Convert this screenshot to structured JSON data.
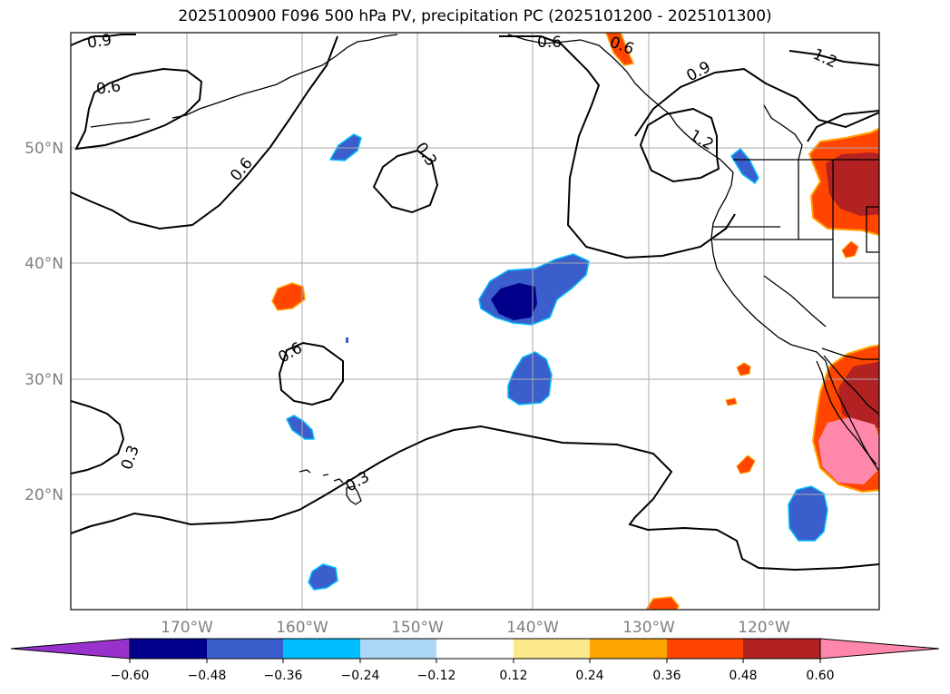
{
  "title": "2025100900 F096 500 hPa PV, precipitation PC (2025101200 - 2025101300)",
  "chart_data": {
    "type": "contour-map",
    "projection": "lat-lon",
    "lon_range": [
      -180,
      -110
    ],
    "lat_range": [
      10,
      60
    ],
    "grid": true,
    "lat_ticks": [
      {
        "value": 50,
        "label": "50°N"
      },
      {
        "value": 40,
        "label": "40°N"
      },
      {
        "value": 30,
        "label": "30°N"
      },
      {
        "value": 20,
        "label": "20°N"
      }
    ],
    "lon_ticks": [
      {
        "value": -170,
        "label": "170°W"
      },
      {
        "value": -160,
        "label": "160°W"
      },
      {
        "value": -150,
        "label": "150°W"
      },
      {
        "value": -140,
        "label": "140°W"
      },
      {
        "value": -130,
        "label": "130°W"
      },
      {
        "value": -120,
        "label": "120°W"
      }
    ],
    "contour_field": "500 hPa PV",
    "contour_levels": [
      0.3,
      0.6,
      0.9,
      1.2
    ],
    "contour_labels": [
      {
        "text": "0.9",
        "lon": -172.6,
        "lat": 59.9
      },
      {
        "text": "0.6",
        "lon": -173.4,
        "lat": 57.9
      },
      {
        "text": "0.6",
        "lon": -169.3,
        "lat": 49.4
      },
      {
        "text": "0.3",
        "lon": -149.1,
        "lat": 50.0
      },
      {
        "text": "0.6",
        "lon": -159.1,
        "lat": 33.0
      },
      {
        "text": "0.3",
        "lon": -175.3,
        "lat": 24.3
      },
      {
        "text": "0.3",
        "lon": -155.2,
        "lat": 21.5
      },
      {
        "text": "0.6",
        "lon": -135.7,
        "lat": 59.4
      },
      {
        "text": "0.6",
        "lon": -131.8,
        "lat": 59.4
      },
      {
        "text": "0.9",
        "lon": -124.2,
        "lat": 56.7
      },
      {
        "text": "1.2",
        "lon": -114.2,
        "lat": 57.8
      },
      {
        "text": "1.2",
        "lon": -123.9,
        "lat": 50.8
      }
    ],
    "shaded_field": "precipitation PC",
    "colorbar": {
      "ticks": [
        "−0.60",
        "−0.48",
        "−0.36",
        "−0.24",
        "−0.12",
        "0.12",
        "0.24",
        "0.36",
        "0.48",
        "0.60"
      ],
      "bins": [
        {
          "range": "< -0.60",
          "color": "#9932cc"
        },
        {
          "range": "-0.60 – -0.48",
          "color": "#00008b"
        },
        {
          "range": "-0.48 – -0.36",
          "color": "#3a5fcd"
        },
        {
          "range": "-0.36 – -0.24",
          "color": "#00bfff"
        },
        {
          "range": "-0.24 – -0.12",
          "color": "#add8f5"
        },
        {
          "range": "-0.12 – 0.12",
          "color": "#ffffff"
        },
        {
          "range": "0.12 – 0.24",
          "color": "#fce98c"
        },
        {
          "range": "0.24 – 0.36",
          "color": "#ffa500"
        },
        {
          "range": "0.36 – 0.48",
          "color": "#ff4500"
        },
        {
          "range": "0.48 – 0.60",
          "color": "#b22222"
        },
        {
          "range": "> 0.60",
          "color": "#ff88aa"
        }
      ]
    }
  }
}
